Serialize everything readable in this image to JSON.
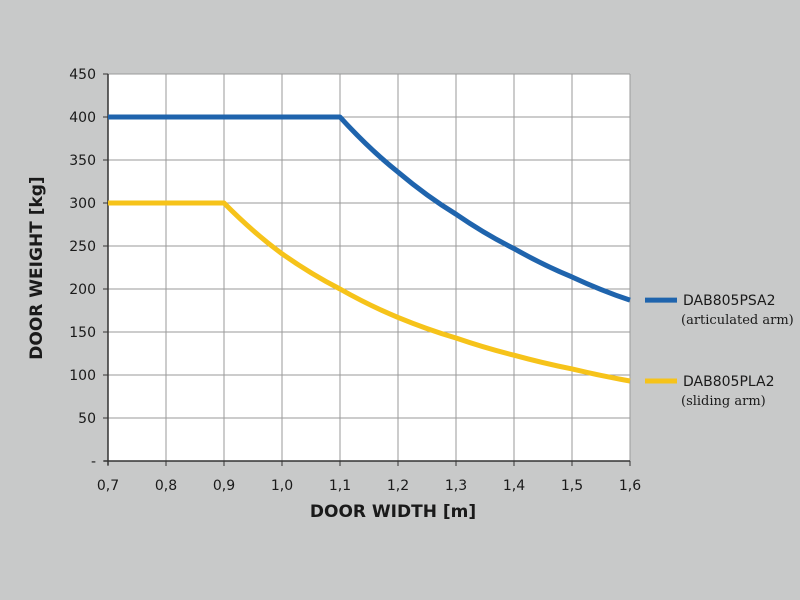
{
  "chart_data": {
    "type": "line",
    "xlabel": "DOOR WIDTH [m]",
    "ylabel": "DOOR WEIGHT [kg]",
    "xlim": [
      0.7,
      1.6
    ],
    "ylim": [
      0,
      450
    ],
    "x_ticks": [
      "0,7",
      "0,8",
      "0,9",
      "1,0",
      "1,1",
      "1,2",
      "1,3",
      "1,4",
      "1,5",
      "1,6"
    ],
    "y_ticks": [
      "-",
      "50",
      "100",
      "150",
      "200",
      "250",
      "300",
      "350",
      "400",
      "450"
    ],
    "grid": true,
    "legend_position": "right",
    "series": [
      {
        "name": "DAB805PSA2",
        "subtitle": "(articulated arm)",
        "color": "#1f64ad",
        "x": [
          0.7,
          0.8,
          0.9,
          1.0,
          1.1,
          1.2,
          1.3,
          1.4,
          1.5,
          1.6
        ],
        "y": [
          400,
          400,
          400,
          400,
          400,
          336,
          287,
          247,
          214,
          187
        ]
      },
      {
        "name": "DAB805PLA2",
        "subtitle": "(sliding arm)",
        "color": "#f6c31a",
        "x": [
          0.7,
          0.8,
          0.9,
          1.0,
          1.1,
          1.2,
          1.3,
          1.4,
          1.5,
          1.6
        ],
        "y": [
          300,
          300,
          300,
          241,
          200,
          167,
          143,
          123,
          107,
          93
        ]
      }
    ]
  }
}
